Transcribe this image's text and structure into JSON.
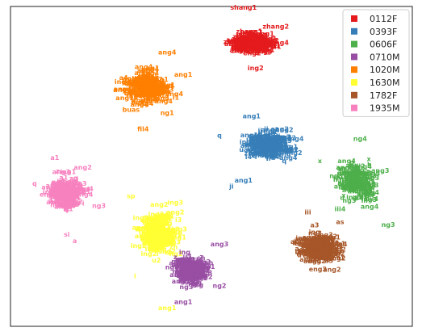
{
  "chart_data": {
    "type": "scatter",
    "title": "",
    "xlabel": "",
    "ylabel": "",
    "grid": false,
    "legend_position": "top-right",
    "xlim": [
      0,
      100
    ],
    "ylim": [
      0,
      100
    ],
    "series": [
      {
        "name": "0112F",
        "color": "#e41a1c",
        "center": [
          60,
          88
        ],
        "spread": [
          7,
          4
        ],
        "tokens": [
          "zhang1",
          "zhang2",
          "ang4",
          "ang1",
          "i1",
          "a1",
          "ing2",
          "eng2",
          "j",
          "ng"
        ],
        "label_points": [
          {
            "x": 58,
            "y": 99,
            "text": "shang1"
          },
          {
            "x": 66,
            "y": 93,
            "text": "zhang2"
          },
          {
            "x": 67,
            "y": 88,
            "text": "ang4"
          },
          {
            "x": 61,
            "y": 80,
            "text": "ing2"
          }
        ]
      },
      {
        "name": "0393F",
        "color": "#377eb8",
        "center": [
          64,
          56
        ],
        "spread": [
          8,
          6
        ],
        "tokens": [
          "ang1",
          "ing2",
          "ang4",
          "zhang3",
          "q",
          "ii",
          "ji",
          "ang2",
          "a3",
          "i",
          "uang",
          "g1",
          "i4"
        ],
        "label_points": [
          {
            "x": 60,
            "y": 65,
            "text": "ang1"
          },
          {
            "x": 52,
            "y": 59,
            "text": "q"
          },
          {
            "x": 67,
            "y": 61,
            "text": "eng2"
          },
          {
            "x": 71,
            "y": 58,
            "text": "ing4"
          },
          {
            "x": 58,
            "y": 45,
            "text": "ang1"
          },
          {
            "x": 55,
            "y": 43,
            "text": "ji"
          }
        ]
      },
      {
        "name": "0606F",
        "color": "#4daf4a",
        "center": [
          86,
          45
        ],
        "spread": [
          7,
          8
        ],
        "tokens": [
          "i1",
          "ang4",
          "iii4",
          "h",
          "ang3",
          "x",
          "u",
          "an",
          "ing3",
          "iii",
          "ng3",
          "i2",
          "a4"
        ],
        "label_points": [
          {
            "x": 87,
            "y": 58,
            "text": "ng4"
          },
          {
            "x": 77,
            "y": 51,
            "text": "x"
          },
          {
            "x": 82,
            "y": 44,
            "text": "h"
          },
          {
            "x": 82,
            "y": 36,
            "text": "iii4"
          },
          {
            "x": 92,
            "y": 48,
            "text": "ang3"
          },
          {
            "x": 94,
            "y": 31,
            "text": "ng3"
          }
        ]
      },
      {
        "name": "0710M",
        "color": "#984ea3",
        "center": [
          45,
          17
        ],
        "spread": [
          6,
          6
        ],
        "tokens": [
          "ang2",
          "ang3",
          "i2",
          "z",
          "a1",
          "ng3",
          "ing",
          "u3",
          "sh",
          "ang1",
          "ng2"
        ],
        "label_points": [
          {
            "x": 52,
            "y": 25,
            "text": "ang3"
          },
          {
            "x": 41,
            "y": 21,
            "text": "z"
          },
          {
            "x": 48,
            "y": 16,
            "text": "ang3"
          },
          {
            "x": 52,
            "y": 12,
            "text": "ng2"
          },
          {
            "x": 43,
            "y": 7,
            "text": "ang1"
          }
        ]
      },
      {
        "name": "1020M",
        "color": "#ff7f00",
        "center": [
          34,
          74
        ],
        "spread": [
          7,
          7
        ],
        "tokens": [
          "ang1",
          "ang4",
          "ing1",
          "ang2",
          "i1",
          "a4",
          "u4",
          "ng1",
          "ing4",
          "i",
          "ang3",
          "bua"
        ],
        "label_points": [
          {
            "x": 39,
            "y": 85,
            "text": "ang4"
          },
          {
            "x": 43,
            "y": 78,
            "text": "ang1"
          },
          {
            "x": 41,
            "y": 72,
            "text": "ing4"
          },
          {
            "x": 30,
            "y": 67,
            "text": "buas"
          },
          {
            "x": 39,
            "y": 66,
            "text": "ng1"
          },
          {
            "x": 33,
            "y": 61,
            "text": "fil4"
          }
        ]
      },
      {
        "name": "1630M",
        "color": "#ffff33",
        "center": [
          37,
          28
        ],
        "spread": [
          6,
          9
        ],
        "tokens": [
          "ing2",
          "ang3",
          "ang2",
          "ang1",
          "i3",
          "a1",
          "u2",
          "ng2",
          "zh",
          "i",
          "ing3",
          "ang"
        ],
        "label_points": [
          {
            "x": 41,
            "y": 38,
            "text": "ing3"
          },
          {
            "x": 41,
            "y": 35,
            "text": "ang2"
          },
          {
            "x": 30,
            "y": 40,
            "text": "sp"
          },
          {
            "x": 31,
            "y": 15,
            "text": "i"
          },
          {
            "x": 39,
            "y": 5,
            "text": "ang1"
          }
        ]
      },
      {
        "name": "1782F",
        "color": "#a65628",
        "center": [
          77,
          24
        ],
        "spread": [
          7,
          7
        ],
        "tokens": [
          "ang1",
          "ang4",
          "a3",
          "ang2",
          "i1",
          "ing",
          "u",
          "wa",
          "ng3",
          "ang",
          "eng2"
        ],
        "label_points": [
          {
            "x": 74,
            "y": 35,
            "text": "iii"
          },
          {
            "x": 82,
            "y": 32,
            "text": "as"
          },
          {
            "x": 77,
            "y": 27,
            "text": "ang1"
          },
          {
            "x": 80,
            "y": 17,
            "text": "ang2"
          }
        ]
      },
      {
        "name": "1935M",
        "color": "#f781bf",
        "center": [
          14,
          41
        ],
        "spread": [
          6,
          8
        ],
        "tokens": [
          "ing1",
          "ang2",
          "a1",
          "ang3",
          "i",
          "q",
          "ang4",
          "eng",
          "ng1",
          "s",
          "z",
          "ng3"
        ],
        "label_points": [
          {
            "x": 11,
            "y": 52,
            "text": "a1"
          },
          {
            "x": 18,
            "y": 49,
            "text": "ang2"
          },
          {
            "x": 6,
            "y": 44,
            "text": "q"
          },
          {
            "x": 22,
            "y": 37,
            "text": "ng3"
          },
          {
            "x": 14,
            "y": 28,
            "text": "si"
          },
          {
            "x": 16,
            "y": 26,
            "text": "a"
          }
        ]
      }
    ]
  }
}
